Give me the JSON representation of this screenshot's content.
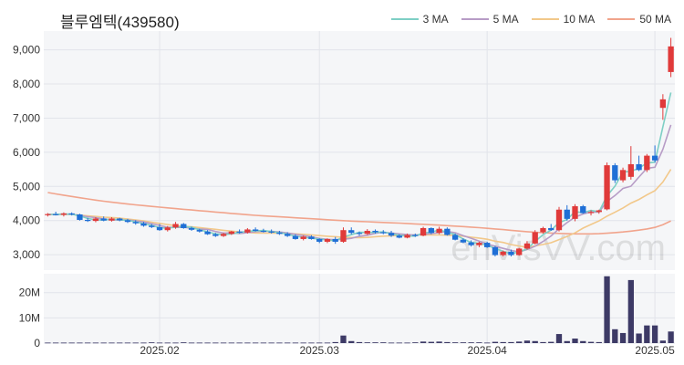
{
  "chart_data": {
    "type": "candlestick",
    "title": "블루엠텍(439580)",
    "watermark": "enVisVV.com",
    "up_color": "#e03a3a",
    "down_color": "#1f6fd6",
    "volume_color": "#3d3a66",
    "legend": [
      {
        "name": "3 MA",
        "color": "#7ecfc5"
      },
      {
        "name": "5 MA",
        "color": "#b79cc6"
      },
      {
        "name": "10 MA",
        "color": "#f2c88a"
      },
      {
        "name": "50 MA",
        "color": "#f1a48c"
      }
    ],
    "price_axis": {
      "ticks": [
        "9,000",
        "8,000",
        "7,000",
        "6,000",
        "5,000",
        "4,000",
        "3,000"
      ],
      "tick_values": [
        9000,
        8000,
        7000,
        6000,
        5000,
        4000,
        3000
      ],
      "range": [
        2550,
        9550
      ]
    },
    "volume_axis": {
      "ticks": [
        "20M",
        "10M",
        "0"
      ],
      "tick_values": [
        20000000,
        10000000,
        0
      ],
      "range": [
        0,
        27500000
      ]
    },
    "x_ticks": [
      {
        "label": "2025.02",
        "index": 14
      },
      {
        "label": "2025.03",
        "index": 34
      },
      {
        "label": "2025.04",
        "index": 55
      },
      {
        "label": "2025.05",
        "index": 76
      }
    ],
    "ohlc": [
      [
        4160,
        4220,
        4120,
        4190
      ],
      [
        4190,
        4260,
        4150,
        4170
      ],
      [
        4170,
        4240,
        4120,
        4210
      ],
      [
        4210,
        4240,
        4150,
        4180
      ],
      [
        4180,
        4200,
        4000,
        4020
      ],
      [
        4020,
        4080,
        3960,
        3990
      ],
      [
        3990,
        4100,
        3950,
        4060
      ],
      [
        4060,
        4120,
        3980,
        4000
      ],
      [
        4000,
        4100,
        3970,
        4060
      ],
      [
        4060,
        4080,
        3980,
        4010
      ],
      [
        4010,
        4050,
        3930,
        3960
      ],
      [
        3960,
        4010,
        3880,
        3920
      ],
      [
        3920,
        3960,
        3820,
        3850
      ],
      [
        3850,
        3900,
        3780,
        3810
      ],
      [
        3810,
        3900,
        3700,
        3720
      ],
      [
        3720,
        3840,
        3680,
        3800
      ],
      [
        3800,
        3960,
        3760,
        3900
      ],
      [
        3900,
        3930,
        3760,
        3780
      ],
      [
        3780,
        3820,
        3700,
        3730
      ],
      [
        3730,
        3760,
        3650,
        3680
      ],
      [
        3680,
        3720,
        3580,
        3600
      ],
      [
        3600,
        3640,
        3520,
        3550
      ],
      [
        3550,
        3640,
        3520,
        3610
      ],
      [
        3610,
        3700,
        3580,
        3680
      ],
      [
        3680,
        3740,
        3620,
        3650
      ],
      [
        3650,
        3780,
        3620,
        3740
      ],
      [
        3740,
        3800,
        3680,
        3700
      ],
      [
        3700,
        3760,
        3650,
        3680
      ],
      [
        3680,
        3740,
        3620,
        3650
      ],
      [
        3650,
        3700,
        3580,
        3610
      ],
      [
        3610,
        3660,
        3520,
        3550
      ],
      [
        3550,
        3600,
        3440,
        3460
      ],
      [
        3460,
        3560,
        3420,
        3530
      ],
      [
        3530,
        3570,
        3440,
        3460
      ],
      [
        3460,
        3480,
        3340,
        3380
      ],
      [
        3380,
        3480,
        3340,
        3460
      ],
      [
        3460,
        3520,
        3320,
        3380
      ],
      [
        3380,
        3800,
        3350,
        3720
      ],
      [
        3720,
        3800,
        3600,
        3640
      ],
      [
        3640,
        3680,
        3560,
        3610
      ],
      [
        3610,
        3750,
        3580,
        3700
      ],
      [
        3700,
        3740,
        3620,
        3660
      ],
      [
        3660,
        3720,
        3600,
        3640
      ],
      [
        3640,
        3700,
        3520,
        3560
      ],
      [
        3560,
        3600,
        3480,
        3500
      ],
      [
        3500,
        3620,
        3480,
        3580
      ],
      [
        3580,
        3620,
        3520,
        3560
      ],
      [
        3560,
        3820,
        3540,
        3780
      ],
      [
        3780,
        3800,
        3600,
        3640
      ],
      [
        3640,
        3820,
        3600,
        3760
      ],
      [
        3760,
        3800,
        3560,
        3580
      ],
      [
        3580,
        3620,
        3420,
        3440
      ],
      [
        3440,
        3480,
        3340,
        3360
      ],
      [
        3360,
        3420,
        3240,
        3280
      ],
      [
        3280,
        3380,
        3220,
        3350
      ],
      [
        3350,
        3380,
        3200,
        3220
      ],
      [
        3220,
        3260,
        2950,
        2990
      ],
      [
        2990,
        3120,
        2950,
        3090
      ],
      [
        3090,
        3150,
        2950,
        2990
      ],
      [
        2990,
        3200,
        2970,
        3180
      ],
      [
        3180,
        3400,
        3150,
        3330
      ],
      [
        3330,
        3720,
        3300,
        3660
      ],
      [
        3660,
        3820,
        3620,
        3780
      ],
      [
        3780,
        3900,
        3700,
        3720
      ],
      [
        3720,
        4400,
        3680,
        4320
      ],
      [
        4320,
        4450,
        4000,
        4050
      ],
      [
        4050,
        4480,
        3980,
        4420
      ],
      [
        4420,
        4460,
        4200,
        4220
      ],
      [
        4220,
        4300,
        4150,
        4250
      ],
      [
        4250,
        4320,
        4200,
        4300
      ],
      [
        4330,
        5700,
        4300,
        5620
      ],
      [
        5620,
        5680,
        5100,
        5180
      ],
      [
        5180,
        5550,
        5120,
        5480
      ],
      [
        5280,
        6180,
        5200,
        5650
      ],
      [
        5650,
        5900,
        5450,
        5480
      ],
      [
        5480,
        5950,
        5420,
        5900
      ],
      [
        5900,
        6200,
        5700,
        5760
      ],
      [
        7300,
        7700,
        6950,
        7550
      ],
      [
        8350,
        9350,
        8200,
        9100
      ]
    ],
    "volume": [
      0.2,
      0.2,
      0.2,
      0.2,
      0.2,
      0.2,
      0.2,
      0.2,
      0.2,
      0.2,
      0.2,
      0.2,
      0.2,
      0.3,
      0.2,
      0.2,
      0.2,
      0.3,
      0.2,
      0.2,
      0.2,
      0.2,
      0.2,
      0.2,
      0.2,
      0.2,
      0.2,
      0.2,
      0.2,
      0.2,
      0.2,
      0.2,
      0.2,
      0.2,
      0.2,
      0.2,
      0.4,
      3.0,
      0.8,
      0.4,
      0.3,
      0.3,
      0.3,
      0.2,
      0.2,
      0.2,
      0.3,
      0.6,
      0.5,
      0.6,
      0.4,
      0.3,
      0.3,
      0.3,
      0.3,
      0.2,
      0.5,
      0.4,
      0.4,
      0.6,
      1.0,
      0.8,
      0.4,
      0.5,
      3.6,
      0.8,
      1.8,
      0.8,
      0.5,
      0.4,
      26.5,
      5.5,
      4.0,
      25.0,
      3.8,
      7.0,
      7.0,
      1.0,
      4.6
    ],
    "ma3": [
      4180,
      4183,
      4190,
      4187,
      4137,
      4063,
      4023,
      4017,
      4040,
      4023,
      4010,
      3963,
      3910,
      3860,
      3793,
      3777,
      3807,
      3827,
      3803,
      3730,
      3670,
      3610,
      3587,
      3613,
      3647,
      3690,
      3697,
      3710,
      3677,
      3647,
      3603,
      3540,
      3513,
      3483,
      3457,
      3433,
      3407,
      3520,
      3587,
      3657,
      3650,
      3657,
      3667,
      3620,
      3567,
      3547,
      3547,
      3640,
      3660,
      3727,
      3660,
      3593,
      3460,
      3360,
      3330,
      3283,
      3187,
      3100,
      3023,
      3087,
      3167,
      3390,
      3590,
      3720,
      3940,
      4030,
      4263,
      4230,
      4297,
      4257,
      4723,
      5007,
      5427,
      5437,
      5537,
      5680,
      5713,
      6750,
      7750
    ],
    "ma5": [
      4180,
      4183,
      4188,
      4186,
      4154,
      4114,
      4086,
      4050,
      4022,
      4014,
      4018,
      3990,
      3960,
      3908,
      3860,
      3803,
      3800,
      3804,
      3776,
      3750,
      3742,
      3680,
      3636,
      3640,
      3618,
      3646,
      3676,
      3692,
      3684,
      3666,
      3638,
      3598,
      3560,
      3524,
      3476,
      3450,
      3440,
      3450,
      3480,
      3542,
      3570,
      3628,
      3660,
      3634,
      3612,
      3592,
      3572,
      3596,
      3618,
      3652,
      3680,
      3646,
      3558,
      3482,
      3396,
      3312,
      3250,
      3186,
      3128,
      3085,
      3150,
      3250,
      3390,
      3550,
      3760,
      3938,
      4100,
      4193,
      4251,
      4247,
      4556,
      4734,
      4942,
      5006,
      5274,
      5530,
      5560,
      6090,
      6800
    ],
    "ma10": [
      4180,
      4180,
      4180,
      4180,
      4160,
      4140,
      4120,
      4100,
      4090,
      4074,
      4047,
      4019,
      3990,
      3954,
      3918,
      3882,
      3851,
      3833,
      3817,
      3794,
      3768,
      3743,
      3716,
      3690,
      3668,
      3654,
      3637,
      3633,
      3633,
      3634,
      3628,
      3612,
      3598,
      3581,
      3561,
      3542,
      3529,
      3509,
      3504,
      3502,
      3507,
      3528,
      3545,
      3554,
      3566,
      3569,
      3580,
      3578,
      3578,
      3580,
      3574,
      3562,
      3544,
      3514,
      3489,
      3452,
      3398,
      3359,
      3299,
      3255,
      3215,
      3258,
      3302,
      3352,
      3443,
      3533,
      3640,
      3778,
      3885,
      3991,
      4129,
      4245,
      4369,
      4511,
      4617,
      4751,
      4875,
      5132,
      5500
    ],
    "ma50": [
      4820,
      4782,
      4744,
      4706,
      4670,
      4634,
      4600,
      4568,
      4538,
      4510,
      4484,
      4460,
      4438,
      4416,
      4394,
      4372,
      4350,
      4330,
      4310,
      4290,
      4270,
      4250,
      4230,
      4210,
      4190,
      4172,
      4154,
      4138,
      4124,
      4110,
      4096,
      4082,
      4068,
      4054,
      4040,
      4026,
      4012,
      3998,
      3986,
      3975,
      3965,
      3955,
      3945,
      3935,
      3925,
      3914,
      3902,
      3890,
      3878,
      3866,
      3852,
      3838,
      3824,
      3808,
      3792,
      3775,
      3756,
      3735,
      3714,
      3694,
      3676,
      3660,
      3646,
      3634,
      3624,
      3616,
      3612,
      3610,
      3612,
      3616,
      3630,
      3648,
      3668,
      3690,
      3720,
      3755,
      3800,
      3880,
      3990
    ]
  }
}
